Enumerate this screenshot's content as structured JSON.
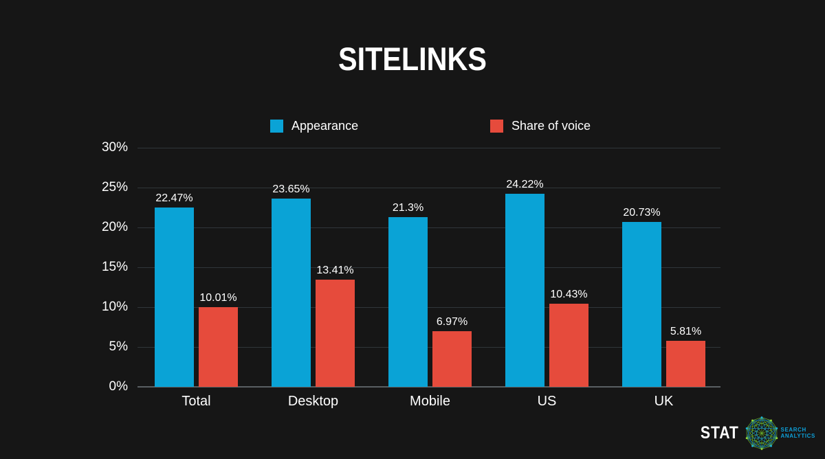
{
  "title": "SITELINKS",
  "chart_data": {
    "type": "bar",
    "title": "SITELINKS",
    "categories": [
      "Total",
      "Desktop",
      "Mobile",
      "US",
      "UK"
    ],
    "series": [
      {
        "name": "Appearance",
        "color": "#0aa3d6",
        "values": [
          22.47,
          23.65,
          21.3,
          24.22,
          20.73
        ]
      },
      {
        "name": "Share of voice",
        "color": "#e64b3c",
        "values": [
          10.01,
          13.41,
          6.97,
          10.43,
          5.81
        ]
      }
    ],
    "value_suffix": "%",
    "xlabel": "",
    "ylabel": "",
    "ylim": [
      0,
      30
    ],
    "ytick_step": 5,
    "yticks": [
      "0%",
      "5%",
      "10%",
      "15%",
      "20%",
      "25%",
      "30%"
    ],
    "grid": true,
    "legend_position": "top"
  },
  "legend": {
    "items": [
      {
        "label": "Appearance",
        "color": "#0aa3d6",
        "x": 393
      },
      {
        "label": "Share of voice",
        "color": "#e64b3c",
        "x": 713
      }
    ]
  },
  "logo": {
    "stat": "STAT",
    "tagline_line1": "SEARCH",
    "tagline_line2": "ANALYTICS",
    "sphere_blue": "#1691c8",
    "sphere_green": "#6cb52d",
    "node_green": "#9edc2a",
    "node_cyan": "#19b5e0"
  },
  "colors": {
    "background": "#161616",
    "text": "#ffffff",
    "gridline": "#30363a",
    "baseline": "#5a5f63"
  }
}
